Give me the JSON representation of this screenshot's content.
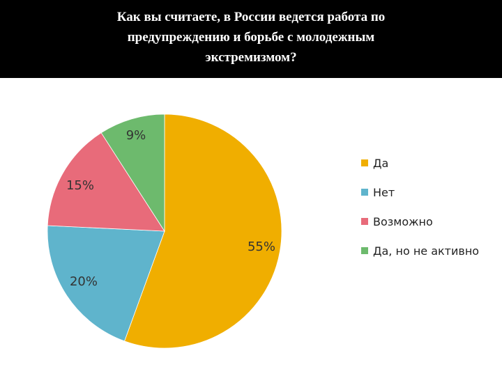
{
  "title": "Как вы считаете, в России ведется работа по предупреждению и борьбе с молодежным экстремизмом?",
  "title_lines": [
    "Как вы считаете, в России ведется работа по",
    "предупреждению и борьбе с молодежным",
    "экстремизмом?"
  ],
  "chart_data": {
    "type": "pie",
    "title": "Как вы считаете, в России ведется работа по предупреждению и борьбе с молодежным экстремизмом?",
    "categories": [
      "Да",
      "Нет",
      "Возможно",
      "Да, но не активно"
    ],
    "values": [
      55,
      20,
      15,
      9
    ],
    "labels": [
      "55%",
      "20%",
      "15%",
      "9%"
    ],
    "colors": [
      "#F0AE00",
      "#5FB4CC",
      "#E86B7A",
      "#6DBA6D"
    ],
    "legend_position": "right"
  }
}
